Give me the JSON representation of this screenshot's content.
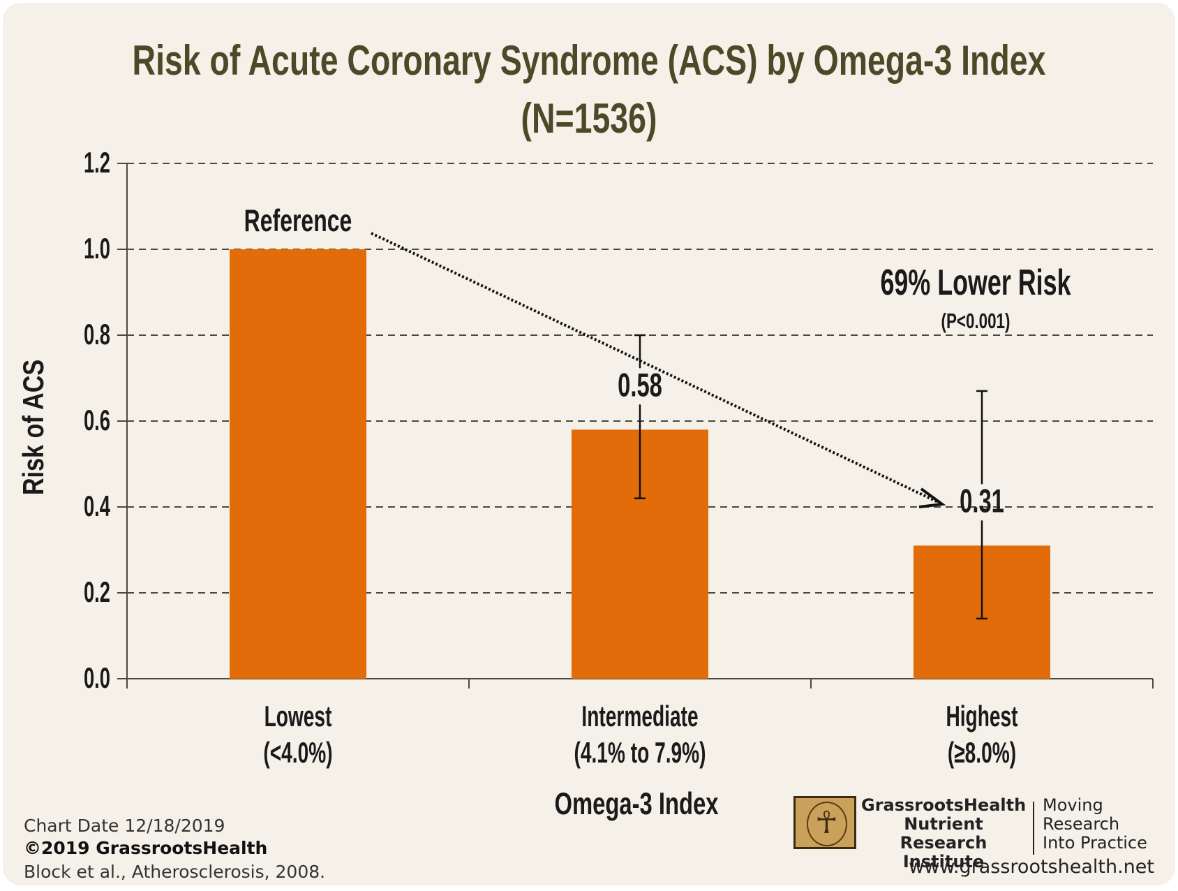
{
  "chart_data": {
    "type": "bar",
    "title": "Risk of Acute Coronary Syndrome (ACS) by Omega-3 Index",
    "subtitle": "(N=1536)",
    "xlabel": "Omega-3 Index",
    "ylabel": "Risk of ACS",
    "ylim": [
      0,
      1.2
    ],
    "yticks": [
      "0.0",
      "0.2",
      "0.4",
      "0.6",
      "0.8",
      "1.0",
      "1.2"
    ],
    "grid": true,
    "categories": [
      {
        "name": "Lowest",
        "range": "(<4.0%)"
      },
      {
        "name": "Intermediate",
        "range": "(4.1% to 7.9%)"
      },
      {
        "name": "Highest",
        "range": "(≥8.0%)"
      }
    ],
    "values": [
      1.0,
      0.58,
      0.31
    ],
    "error_low": [
      null,
      0.42,
      0.14
    ],
    "error_high": [
      null,
      0.8,
      0.67
    ],
    "data_labels": [
      "Reference",
      "0.58",
      "0.31"
    ],
    "bar_color": "#e36c0a",
    "annotation": {
      "text": "69% Lower Risk",
      "subtext": "(P<0.001)"
    }
  },
  "footer": {
    "chart_date": "Chart Date 12/18/2019",
    "copyright": "©2019 GrassrootsHealth",
    "citation": "Block et al., Atherosclerosis, 2008."
  },
  "logo": {
    "name_line1": "GrassrootsHealth",
    "name_line2": "Nutrient",
    "name_line3": "Research Institute",
    "tagline1": "Moving",
    "tagline2": "Research",
    "tagline3": "Into Practice",
    "website": "www.grassrootshealth.net"
  },
  "colors": {
    "background": "#f5f1e8",
    "title": "#4a4a28",
    "text": "#1a1a1a",
    "bar": "#e36c0a"
  }
}
